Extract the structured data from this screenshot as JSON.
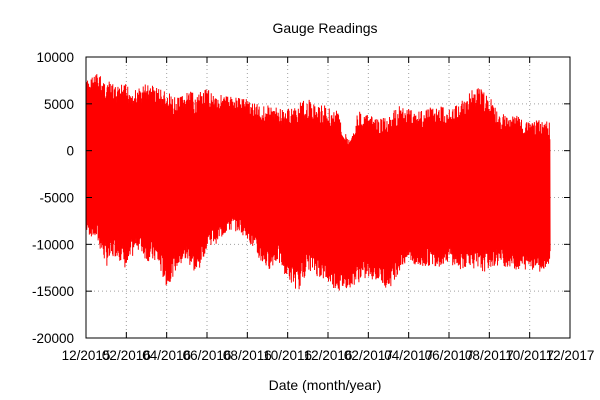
{
  "chart_data": {
    "type": "line",
    "title": "Gauge Readings",
    "xlabel": "Date (month/year)",
    "ylabel": "",
    "ylim": [
      -20000,
      10000
    ],
    "xlim": [
      "12/2015",
      "12/2017"
    ],
    "x_tick_labels": [
      "12/2015",
      "02/2016",
      "04/2016",
      "06/2016",
      "08/2016",
      "10/2016",
      "12/2016",
      "02/2017",
      "04/2017",
      "06/2017",
      "08/2017",
      "10/2017",
      "12/2017"
    ],
    "x_tick_values": [
      0,
      2,
      4,
      6,
      8,
      10,
      12,
      14,
      16,
      18,
      20,
      22,
      24
    ],
    "y_ticks": [
      -20000,
      -15000,
      -10000,
      -5000,
      0,
      5000,
      10000
    ],
    "grid": true,
    "series_color": "#ff0000",
    "series": [
      {
        "x": [
          0.0,
          0.5,
          1.0,
          1.5,
          2.0,
          2.5,
          3.0,
          3.5,
          4.0,
          4.5,
          5.0,
          5.5,
          6.0,
          6.5,
          7.0,
          7.5,
          8.0,
          8.5,
          9.0,
          9.5,
          10.0,
          10.5,
          11.0,
          11.5,
          12.0,
          12.5,
          13.0,
          13.5,
          14.0,
          14.5,
          15.0,
          15.5,
          16.0,
          16.5,
          17.0,
          17.5,
          18.0,
          18.5,
          19.0,
          19.5,
          20.0,
          20.5,
          21.0,
          21.5,
          22.0,
          22.5,
          23.0
        ],
        "upper": [
          7500,
          8400,
          7600,
          6900,
          7200,
          6500,
          7300,
          7000,
          6300,
          5600,
          6400,
          6100,
          6600,
          6100,
          5900,
          5800,
          5700,
          5000,
          4900,
          4600,
          4500,
          5000,
          5600,
          4800,
          4900,
          4200,
          1200,
          4300,
          3800,
          3400,
          3600,
          4900,
          4600,
          4400,
          4700,
          4800,
          4600,
          5000,
          6300,
          7000,
          5800,
          4000,
          3900,
          3700,
          2900,
          3400,
          3000
        ],
        "lower": [
          -8900,
          -9600,
          -12400,
          -11200,
          -12900,
          -10400,
          -11800,
          -12100,
          -14700,
          -12600,
          -11900,
          -13500,
          -10200,
          -9900,
          -8700,
          -8600,
          -9400,
          -11600,
          -12800,
          -11900,
          -13800,
          -15100,
          -12700,
          -13500,
          -14200,
          -15100,
          -14700,
          -14100,
          -13700,
          -14000,
          -14900,
          -13000,
          -11800,
          -12800,
          -12300,
          -12400,
          -11900,
          -12900,
          -12200,
          -13200,
          -12600,
          -12300,
          -12500,
          -12900,
          -12600,
          -13000,
          -12000
        ]
      }
    ]
  }
}
